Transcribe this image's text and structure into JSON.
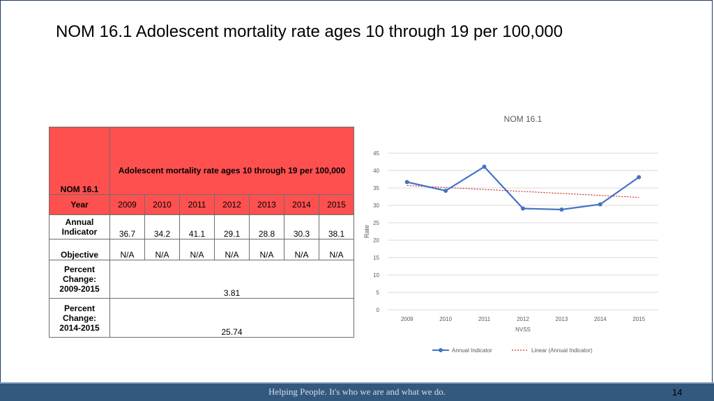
{
  "title": "NOM 16.1 Adolescent mortality rate ages 10 through 19 per 100,000",
  "table": {
    "corner": "NOM 16.1",
    "header": "Adolescent mortality rate ages 10 through 19 per 100,000",
    "year_label": "Year",
    "years": [
      "2009",
      "2010",
      "2011",
      "2012",
      "2013",
      "2014",
      "2015"
    ],
    "annual_label": "Annual Indicator",
    "annual": [
      "36.7",
      "34.2",
      "41.1",
      "29.1",
      "28.8",
      "30.3",
      "38.1"
    ],
    "objective_label": "Objective",
    "objective": [
      "N/A",
      "N/A",
      "N/A",
      "N/A",
      "N/A",
      "N/A",
      "N/A"
    ],
    "pc1_label": "Percent Change: 2009-2015",
    "pc1_value": "3.81",
    "pc2_label": "Percent Change: 2014-2015",
    "pc2_value": "25.74"
  },
  "chart_data": {
    "type": "line",
    "title": "NOM 16.1",
    "xlabel": "NVSS",
    "ylabel": "Rate",
    "categories": [
      "2009",
      "2010",
      "2011",
      "2012",
      "2013",
      "2014",
      "2015"
    ],
    "series": [
      {
        "name": "Annual Indicator",
        "values": [
          36.7,
          34.2,
          41.1,
          29.1,
          28.8,
          30.3,
          38.1
        ],
        "color": "#4472c4"
      }
    ],
    "trendline": {
      "name": "Linear (Annual Indicator)",
      "start": 35.7,
      "end": 32.3,
      "color": "#c00000"
    },
    "ylim": [
      0,
      45
    ],
    "yticks": [
      "0",
      "5",
      "10",
      "15",
      "20",
      "25",
      "30",
      "35",
      "40",
      "45"
    ],
    "grid": true,
    "legend": "bottom"
  },
  "footer": {
    "tagline": "Helping People.  It's who we are and what we do.",
    "page": "14"
  }
}
